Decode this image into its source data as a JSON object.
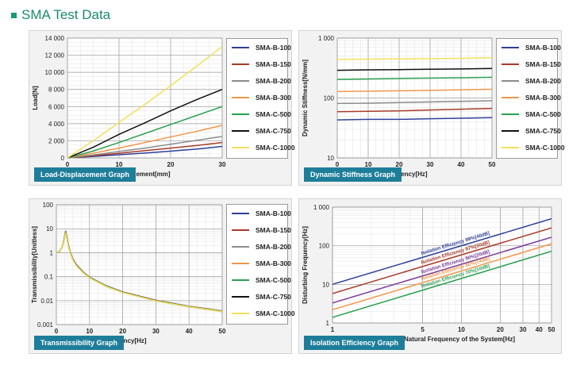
{
  "page": {
    "title": "SMA Test Data"
  },
  "legend_items": [
    "SMA-B-100",
    "SMA-B-150",
    "SMA-B-200",
    "SMA-B-300",
    "SMA-C-500",
    "SMA-C-750",
    "SMA-C-1000"
  ],
  "colors": {
    "accent": "#1a8a6e",
    "caption_bg": "#1e7e9a",
    "series": [
      "#2e3f99",
      "#a83a2a",
      "#8c8c8c",
      "#f0964a",
      "#2aa050",
      "#111111",
      "#f2e05a"
    ]
  },
  "chart_data": [
    {
      "type": "line",
      "caption": "Load-Displacement Graph",
      "xlabel": "Displacement[mm]",
      "ylabel": "Load[N]",
      "xlim": [
        0,
        30
      ],
      "ylim": [
        0,
        14000
      ],
      "xticks": [
        0,
        10,
        20,
        30
      ],
      "xtick_labels": [
        "0",
        "10",
        "20",
        "30"
      ],
      "yticks": [
        0,
        2000,
        4000,
        6000,
        8000,
        10000,
        12000,
        14000
      ],
      "ytick_labels": [
        "0",
        "2 000",
        "4 000",
        "6 000",
        "8 000",
        "10 000",
        "12 000",
        "14 000"
      ],
      "grid": true,
      "legend": "right",
      "series": [
        {
          "name": "SMA-B-100",
          "x": [
            0,
            5,
            10,
            15,
            20,
            25,
            30
          ],
          "y": [
            0,
            170,
            370,
            570,
            790,
            1030,
            1350
          ]
        },
        {
          "name": "SMA-B-150",
          "x": [
            0,
            5,
            10,
            15,
            20,
            25,
            30
          ],
          "y": [
            0,
            250,
            550,
            850,
            1150,
            1450,
            1800
          ]
        },
        {
          "name": "SMA-B-200",
          "x": [
            0,
            5,
            10,
            15,
            20,
            25,
            30
          ],
          "y": [
            0,
            350,
            750,
            1150,
            1600,
            2050,
            2500
          ]
        },
        {
          "name": "SMA-B-300",
          "x": [
            0,
            5,
            10,
            15,
            20,
            25,
            30
          ],
          "y": [
            0,
            550,
            1150,
            1800,
            2450,
            3100,
            3800
          ]
        },
        {
          "name": "SMA-C-500",
          "x": [
            0,
            5,
            10,
            15,
            20,
            25,
            30
          ],
          "y": [
            0,
            800,
            1800,
            2850,
            3900,
            4950,
            6000
          ]
        },
        {
          "name": "SMA-C-750",
          "x": [
            0,
            5,
            10,
            15,
            20,
            25,
            30
          ],
          "y": [
            0,
            1250,
            2750,
            4100,
            5500,
            6800,
            8000
          ]
        },
        {
          "name": "SMA-C-1000",
          "x": [
            0,
            5,
            10,
            15,
            20,
            25,
            30
          ],
          "y": [
            0,
            2000,
            4150,
            6250,
            8450,
            10700,
            13000
          ]
        }
      ]
    },
    {
      "type": "line",
      "caption": "Dynamic Stiffness Graph",
      "xlabel": "Frequency[Hz]",
      "ylabel": "Dynamic Stiffness[N/mm]",
      "xlim": [
        0,
        50
      ],
      "ylim": [
        10,
        1000
      ],
      "yscale": "log",
      "xticks": [
        0,
        10,
        20,
        30,
        40,
        50
      ],
      "xtick_labels": [
        "0",
        "10",
        "20",
        "30",
        "40",
        "50"
      ],
      "yticks": [
        10,
        100,
        1000
      ],
      "ytick_labels": [
        "10",
        "100",
        "1 000"
      ],
      "grid": true,
      "legend": "right",
      "series": [
        {
          "name": "SMA-B-100",
          "x": [
            0,
            10,
            20,
            30,
            40,
            50
          ],
          "y": [
            43,
            44,
            44,
            45,
            46,
            47
          ]
        },
        {
          "name": "SMA-B-150",
          "x": [
            0,
            10,
            20,
            30,
            40,
            50
          ],
          "y": [
            59,
            60,
            61,
            63,
            65,
            67
          ]
        },
        {
          "name": "SMA-B-200",
          "x": [
            0,
            10,
            20,
            30,
            40,
            50
          ],
          "y": [
            81,
            82,
            84,
            86,
            88,
            90
          ]
        },
        {
          "name": "SMA-B-300",
          "x": [
            0,
            10,
            20,
            30,
            40,
            50
          ],
          "y": [
            128,
            130,
            132,
            134,
            137,
            140
          ]
        },
        {
          "name": "SMA-C-500",
          "x": [
            0,
            10,
            20,
            30,
            40,
            50
          ],
          "y": [
            205,
            208,
            212,
            215,
            218,
            222
          ]
        },
        {
          "name": "SMA-C-750",
          "x": [
            0,
            10,
            20,
            30,
            40,
            50
          ],
          "y": [
            290,
            295,
            298,
            302,
            306,
            312
          ]
        },
        {
          "name": "SMA-C-1000",
          "x": [
            0,
            10,
            20,
            30,
            40,
            50
          ],
          "y": [
            440,
            445,
            450,
            455,
            460,
            470
          ]
        }
      ]
    },
    {
      "type": "line",
      "caption": "Transmissibility Graph",
      "xlabel": "Frequency[Hz]",
      "ylabel": "Transmissibility[Unitless]",
      "xlim": [
        0,
        50
      ],
      "ylim": [
        0.001,
        100
      ],
      "yscale": "log",
      "xticks": [
        0,
        10,
        20,
        30,
        40,
        50
      ],
      "xtick_labels": [
        "0",
        "10",
        "20",
        "30",
        "40",
        "50"
      ],
      "yticks": [
        0.001,
        0.01,
        0.1,
        1,
        10,
        100
      ],
      "ytick_labels": [
        "0.001",
        "0.01",
        "0.1",
        "1",
        "10",
        "100"
      ],
      "grid": true,
      "legend": "right",
      "series": [
        {
          "name": "SMA-B-100",
          "x": [
            0,
            1,
            1.8,
            2.4,
            2.8,
            3.2,
            3.6,
            4.2,
            5,
            6,
            8,
            10,
            15,
            20,
            30,
            40,
            50
          ],
          "y": [
            1,
            1.15,
            1.8,
            4,
            7.8,
            4.5,
            2.2,
            1.05,
            0.55,
            0.32,
            0.16,
            0.095,
            0.042,
            0.023,
            0.0103,
            0.0058,
            0.0037
          ]
        },
        {
          "name": "SMA-B-150",
          "x": [
            0,
            1,
            1.8,
            2.4,
            2.8,
            3.2,
            3.6,
            4.2,
            5,
            6,
            8,
            10,
            15,
            20,
            30,
            40,
            50
          ],
          "y": [
            1,
            1.15,
            1.8,
            4,
            7.6,
            4.4,
            2.15,
            1.03,
            0.54,
            0.315,
            0.158,
            0.094,
            0.041,
            0.0228,
            0.0102,
            0.0057,
            0.0037
          ]
        },
        {
          "name": "SMA-B-200",
          "x": [
            0,
            1,
            1.8,
            2.4,
            2.8,
            3.2,
            3.6,
            4.2,
            5,
            6,
            8,
            10,
            15,
            20,
            30,
            40,
            50
          ],
          "y": [
            1,
            1.15,
            1.8,
            3.9,
            7.4,
            4.3,
            2.1,
            1.02,
            0.53,
            0.31,
            0.156,
            0.093,
            0.041,
            0.0226,
            0.0101,
            0.0057,
            0.0036
          ]
        },
        {
          "name": "SMA-B-300",
          "x": [
            0,
            1,
            1.8,
            2.4,
            2.8,
            3.2,
            3.6,
            4.2,
            5,
            6,
            8,
            10,
            15,
            20,
            30,
            40,
            50
          ],
          "y": [
            1,
            1.15,
            1.8,
            3.9,
            7.2,
            4.2,
            2.05,
            1.0,
            0.52,
            0.305,
            0.154,
            0.092,
            0.04,
            0.0224,
            0.01,
            0.0056,
            0.0036
          ]
        },
        {
          "name": "SMA-C-500",
          "x": [
            0,
            1,
            1.8,
            2.4,
            2.8,
            3.2,
            3.6,
            4.2,
            5,
            6,
            8,
            10,
            15,
            20,
            30,
            40,
            50
          ],
          "y": [
            1,
            1.15,
            1.8,
            3.8,
            7.0,
            4.1,
            2.0,
            0.99,
            0.51,
            0.3,
            0.152,
            0.091,
            0.04,
            0.0222,
            0.0099,
            0.0056,
            0.0036
          ]
        },
        {
          "name": "SMA-C-750",
          "x": [
            0,
            1,
            1.8,
            2.4,
            2.8,
            3.2,
            3.6,
            4.2,
            5,
            6,
            8,
            10,
            15,
            20,
            30,
            40,
            50
          ],
          "y": [
            1,
            1.15,
            1.8,
            3.8,
            6.8,
            4.0,
            1.95,
            0.98,
            0.5,
            0.295,
            0.15,
            0.09,
            0.039,
            0.022,
            0.0098,
            0.0055,
            0.0035
          ]
        },
        {
          "name": "SMA-C-1000",
          "x": [
            0,
            1,
            1.8,
            2.4,
            2.8,
            3.2,
            3.6,
            4.2,
            5,
            6,
            8,
            10,
            15,
            20,
            30,
            40,
            50
          ],
          "y": [
            1,
            1.15,
            1.8,
            3.7,
            6.6,
            3.9,
            1.9,
            0.97,
            0.49,
            0.29,
            0.148,
            0.089,
            0.039,
            0.0218,
            0.0097,
            0.0055,
            0.0035
          ]
        }
      ]
    },
    {
      "type": "line",
      "caption": "Isolation Efficiency Graph",
      "xlabel": "Natural Frequency of the System[Hz]",
      "ylabel": "Disturbing Frequency[Hz]",
      "xlim": [
        1,
        50
      ],
      "ylim": [
        1,
        1000
      ],
      "xscale": "log",
      "yscale": "log",
      "xticks": [
        1,
        5,
        10,
        20,
        30,
        40,
        50
      ],
      "xtick_labels": [
        "1",
        "5",
        "10",
        "20",
        "30",
        "40",
        "50"
      ],
      "yticks": [
        1,
        10,
        100,
        1000
      ],
      "ytick_labels": [
        "1",
        "10",
        "100",
        "1 000"
      ],
      "grid": true,
      "series": [
        {
          "name": "Isolation Efficiency 99%[40dB]",
          "color": "#2e3f99",
          "x": [
            1,
            50
          ],
          "y": [
            10,
            500
          ]
        },
        {
          "name": "Isolation Efficiency 97%[30dB]",
          "color": "#a83a2a",
          "x": [
            1,
            50
          ],
          "y": [
            5.8,
            290
          ]
        },
        {
          "name": "Isolation Efficiency 90%[20dB]",
          "color": "#7a3a9a",
          "x": [
            1,
            50
          ],
          "y": [
            3.3,
            166
          ]
        },
        {
          "name": "Isolation Efficiency 80%[14dB]",
          "color": "#f0964a",
          "x": [
            1,
            50
          ],
          "y": [
            2.2,
            112
          ]
        },
        {
          "name": "Isolation Efficiency 70%[10dB]",
          "color": "#2aa050",
          "x": [
            1,
            50
          ],
          "y": [
            1.4,
            72
          ]
        }
      ]
    }
  ]
}
